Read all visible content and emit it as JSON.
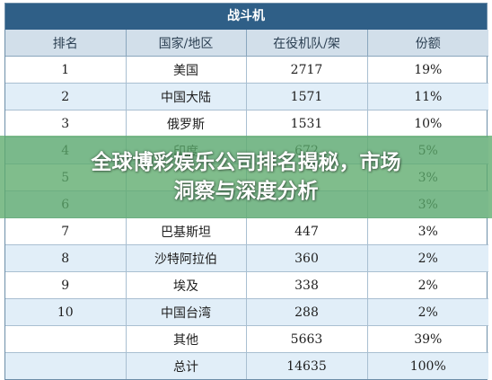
{
  "table": {
    "title": "战斗机",
    "headers": [
      "排名",
      "国家/地区",
      "在役机队/架",
      "份额"
    ],
    "rows": [
      {
        "rank": "1",
        "country": "美国",
        "fleet": "2717",
        "share": "19%"
      },
      {
        "rank": "2",
        "country": "中国大陆",
        "fleet": "1571",
        "share": "11%"
      },
      {
        "rank": "3",
        "country": "俄罗斯",
        "fleet": "1531",
        "share": "10%"
      },
      {
        "rank": "4",
        "country": "印度",
        "fleet": "672",
        "share": "5%"
      },
      {
        "rank": "5",
        "country": "",
        "fleet": "",
        "share": "3%"
      },
      {
        "rank": "6",
        "country": "",
        "fleet": "",
        "share": "3%"
      },
      {
        "rank": "7",
        "country": "巴基斯坦",
        "fleet": "447",
        "share": "3%"
      },
      {
        "rank": "8",
        "country": "沙特阿拉伯",
        "fleet": "360",
        "share": "2%"
      },
      {
        "rank": "9",
        "country": "埃及",
        "fleet": "338",
        "share": "2%"
      },
      {
        "rank": "10",
        "country": "中国台湾",
        "fleet": "288",
        "share": "2%"
      },
      {
        "rank": "",
        "country": "其他",
        "fleet": "5663",
        "share": "39%"
      },
      {
        "rank": "",
        "country": "总计",
        "fleet": "14635",
        "share": "100%"
      }
    ]
  },
  "overlay": {
    "line1": "全球博彩娱乐公司排名揭秘，市场",
    "line2": "洞察与深度分析"
  }
}
